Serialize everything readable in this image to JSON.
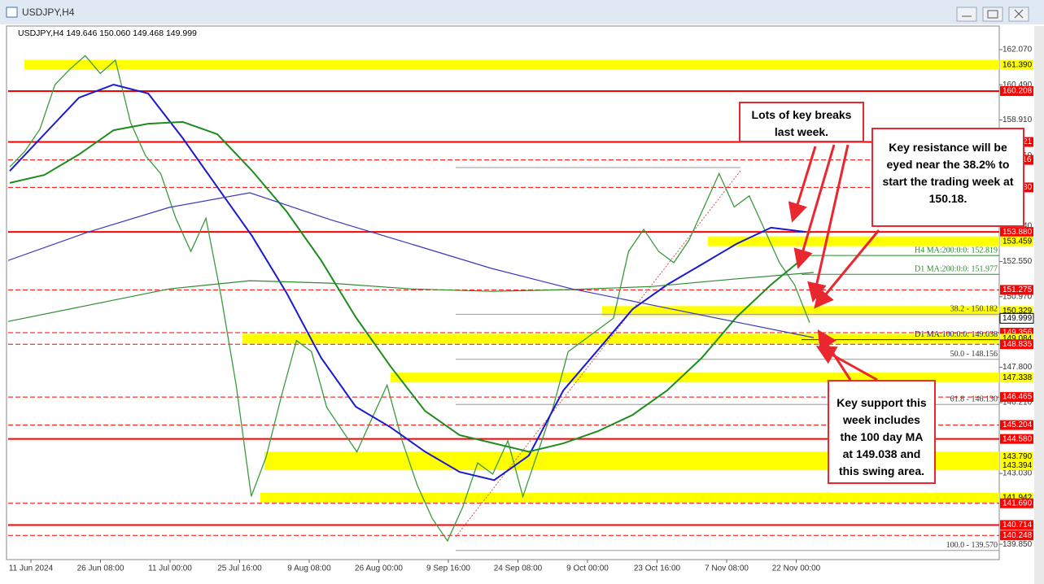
{
  "window": {
    "title": "USDJPY,H4"
  },
  "chart_data": {
    "type": "line",
    "header": "USDJPY,H4  149.646 150.060 149.468 149.999",
    "ylim": [
      139.16,
      163.02
    ],
    "yticks": [
      {
        "value": 162.07,
        "label": "162.070"
      },
      {
        "value": 160.49,
        "label": "160.490"
      },
      {
        "value": 158.91,
        "label": "158.910"
      },
      {
        "value": 157.31,
        "label": "157.310"
      },
      {
        "value": 154.14,
        "label": "154.140"
      },
      {
        "value": 152.55,
        "label": "152.550"
      },
      {
        "value": 150.97,
        "label": "150.970"
      },
      {
        "value": 147.8,
        "label": "147.800"
      },
      {
        "value": 146.21,
        "label": "146.210"
      },
      {
        "value": 143.03,
        "label": "143.030"
      },
      {
        "value": 139.85,
        "label": "139.850"
      }
    ],
    "x_axis_labels": [
      "11 Jun 2024",
      "26 Jun 08:00",
      "11 Jul 00:00",
      "25 Jul 16:00",
      "9 Aug 08:00",
      "26 Aug 00:00",
      "9 Sep 16:00",
      "24 Sep 08:00",
      "9 Oct 00:00",
      "23 Oct 16:00",
      "7 Nov 08:00",
      "22 Nov 00:00"
    ],
    "series": [
      {
        "color": "#3c9a3c",
        "values": [
          156.8,
          157.5,
          158.5,
          160.5,
          161.2,
          161.8,
          161.0,
          161.6,
          158.8,
          157.3,
          156.5,
          154.5,
          153.0,
          154.5,
          151.0,
          147.0,
          142.0,
          143.8,
          146.5,
          149.0,
          148.5,
          146.0,
          145.0,
          144.0,
          145.5,
          147.0,
          144.5,
          142.5,
          141.0,
          140.0,
          141.5,
          143.5,
          143.0,
          144.5,
          142.0,
          144.0,
          146.0,
          148.5,
          149.0,
          149.5,
          150.0,
          153.0,
          154.0,
          153.0,
          152.5,
          153.5,
          155.0,
          156.5,
          155.0,
          155.5,
          154.0,
          152.5,
          151.5,
          149.8
        ]
      },
      {
        "color": "#1a1ad0",
        "values": [
          156.62,
          158.27,
          159.91,
          160.5,
          160.1,
          158.09,
          155.89,
          153.7,
          151.14,
          148.22,
          146.03,
          145.11,
          144.01,
          143.1,
          142.73,
          143.83,
          146.76,
          148.58,
          150.41,
          151.51,
          152.42,
          153.34,
          154.07,
          153.88
        ]
      },
      {
        "color": "#1e8c1e",
        "values": [
          156.08,
          156.44,
          157.36,
          158.45,
          158.74,
          158.82,
          158.27,
          156.63,
          154.8,
          152.6,
          150.05,
          147.85,
          145.84,
          144.75,
          144.38,
          144.01,
          144.38,
          144.93,
          145.66,
          146.76,
          148.22,
          150.05,
          151.51,
          152.79
        ]
      },
      {
        "color": "#3a3ab8",
        "values": [
          152.6,
          153.88,
          154.98,
          155.64,
          154.43,
          153.34,
          152.24,
          151.32,
          150.59,
          149.86,
          149.13
        ]
      },
      {
        "color": "#2f8a2f",
        "values": [
          149.86,
          150.59,
          151.32,
          151.69,
          151.58,
          151.32,
          151.21,
          151.29,
          151.43,
          151.76,
          152.06
        ]
      }
    ],
    "levels": [
      {
        "price": 161.39,
        "label": "161.390",
        "color": "#ffff00",
        "style": "band"
      },
      {
        "price": 160.208,
        "color": "#ff0000",
        "style": "solid"
      },
      {
        "price": 157.921,
        "color": "#ff0000",
        "style": "solid"
      },
      {
        "price": 157.116,
        "color": "#ff0000",
        "style": "dashed"
      },
      {
        "price": 155.88,
        "label": "155.880",
        "color": "#ff0000",
        "style": "dashed"
      },
      {
        "price": 153.88,
        "label": "153.880",
        "color": "#ff0000",
        "style": "solid"
      },
      {
        "price": 153.459,
        "color": "#ffff00",
        "style": "band"
      },
      {
        "price": 151.275,
        "color": "#ff0000",
        "style": "dashed"
      },
      {
        "price": 150.329,
        "color": "#ffff00",
        "style": "band"
      },
      {
        "price": 149.356,
        "color": "#ff0000",
        "style": "dashed"
      },
      {
        "price": 149.084,
        "color": "#ffff00",
        "style": "band"
      },
      {
        "price": 148.835,
        "color": "#ff0000",
        "style": "dashed"
      },
      {
        "price": 147.338,
        "color": "#ffff00",
        "style": "band"
      },
      {
        "price": 146.465,
        "color": "#ff0000",
        "style": "dashed"
      },
      {
        "price": 145.204,
        "color": "#ff0000",
        "style": "dashed"
      },
      {
        "price": 144.58,
        "label": "144.580",
        "color": "#ff0000",
        "style": "solid"
      },
      {
        "price": 143.79,
        "label": "143.790",
        "color": "#ffff00",
        "style": "band"
      },
      {
        "price": 143.394,
        "color": "#ffff00",
        "style": "band"
      },
      {
        "price": 141.942,
        "color": "#ffff00",
        "style": "band"
      },
      {
        "price": 141.69,
        "label": "141.690",
        "color": "#ff0000",
        "style": "dashed"
      },
      {
        "price": 140.714,
        "color": "#ff0000",
        "style": "solid"
      },
      {
        "price": 140.248,
        "color": "#ff0000",
        "style": "dashed"
      }
    ],
    "last_price": 149.999,
    "fib_levels": [
      {
        "value": 150.182,
        "label": "38.2 - 150.182"
      },
      {
        "value": 148.156,
        "label": "50.0 - 148.156"
      },
      {
        "value": 146.13,
        "label": "61.8 - 146.130"
      },
      {
        "value": 139.57,
        "label": "100.0 - 139.570"
      }
    ],
    "ma_labels": [
      {
        "value": 152.819,
        "label": "H4 MA:200:0:0: 152.819",
        "color": "#1e8c1e"
      },
      {
        "value": 151.977,
        "label": "D1 MA:200:0:0: 151.977",
        "color": "#2f8a2f"
      },
      {
        "value": 149.038,
        "label": "D1 MA:100:0:0: 149.038",
        "color": "#1a1a80"
      }
    ]
  },
  "annotations": [
    "Lots of key breaks last week.",
    "Key resistance will be eyed near the 38.2% to start the trading week at 150.18.",
    "Key support this week includes the 100 day MA at 149.038 and this swing area."
  ]
}
